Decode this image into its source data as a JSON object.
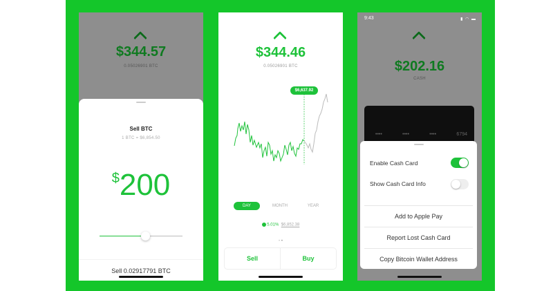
{
  "colors": {
    "brand_green": "#14c62a",
    "overlay_gray": "#8e8e8e"
  },
  "sell_screen": {
    "balance": "$344.57",
    "btc_amount": "0.05026901 BTC",
    "sheet_title": "Sell BTC",
    "rate": "1 BTC = $6,854.50",
    "currency_symbol": "$",
    "amount": "200",
    "slider_value_pct": 55,
    "sell_button": "Sell 0.02917791 BTC"
  },
  "chart_screen": {
    "balance": "$344.46",
    "btc_amount": "0.05026901 BTC",
    "tooltip": "$6,637.92",
    "tabs": [
      {
        "label": "DAY",
        "active": true
      },
      {
        "label": "MONTH",
        "active": false
      },
      {
        "label": "YEAR",
        "active": false
      }
    ],
    "change": "5.01%",
    "current_price": "$6,852.38",
    "sell_label": "Sell",
    "buy_label": "Buy"
  },
  "cash_screen": {
    "status_time": "9:43",
    "balance": "$202.16",
    "balance_label": "CASH",
    "card_groups": [
      "••••",
      "••••",
      "••••",
      "6794"
    ],
    "toggles": [
      {
        "label": "Enable Cash Card",
        "on": true
      },
      {
        "label": "Show Cash Card Info",
        "on": false
      }
    ],
    "actions": [
      "Add to Apple Pay",
      "Report Lost Cash Card",
      "Copy Bitcoin Wallet Address"
    ]
  }
}
